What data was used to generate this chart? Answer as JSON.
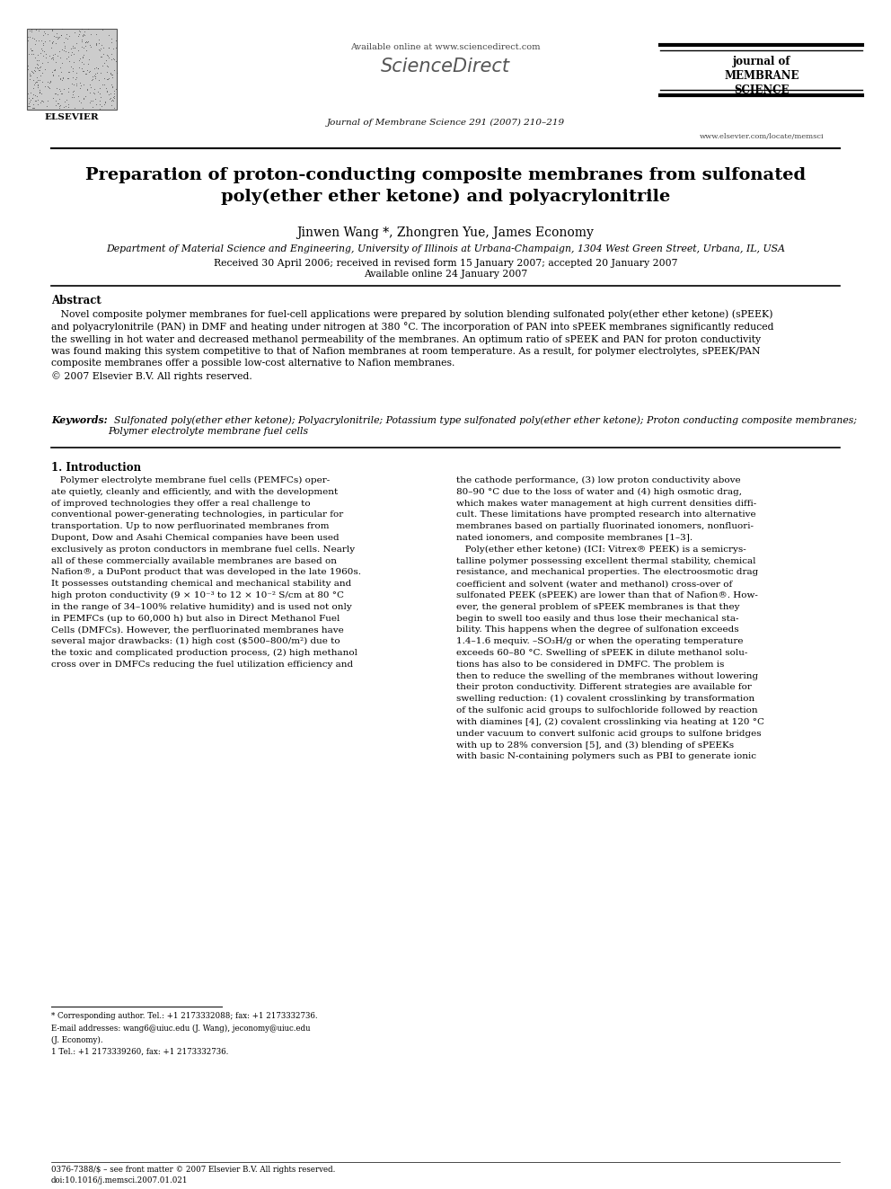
{
  "bg_color": "#ffffff",
  "page_width": 9.92,
  "page_height": 13.23,
  "header": {
    "available_online": "Available online at www.sciencedirect.com",
    "sciencedirect": "ScienceDirect",
    "journal_name": "journal of\nMEMBRANE\nSCIENCE",
    "journal_ref": "Journal of Membrane Science 291 (2007) 210–219",
    "website": "www.elsevier.com/locate/memsci",
    "elsevier": "ELSEVIER"
  },
  "title_line1": "Preparation of proton-conducting composite membranes from sulfonated",
  "title_line2": "poly(ether ether ketone) and polyacrylonitrile",
  "authors": "Jinwen Wang *, Zhongren Yue, James Economy",
  "affiliation": "Department of Material Science and Engineering, University of Illinois at Urbana-Champaign, 1304 West Green Street, Urbana, IL, USA",
  "received": "Received 30 April 2006; received in revised form 15 January 2007; accepted 20 January 2007",
  "available": "Available online 24 January 2007",
  "abstract_title": "Abstract",
  "abstract_text": "   Novel composite polymer membranes for fuel-cell applications were prepared by solution blending sulfonated poly(ether ether ketone) (sPEEK)\nand polyacrylonitrile (PAN) in DMF and heating under nitrogen at 380 °C. The incorporation of PAN into sPEEK membranes significantly reduced\nthe swelling in hot water and decreased methanol permeability of the membranes. An optimum ratio of sPEEK and PAN for proton conductivity\nwas found making this system competitive to that of Nafion membranes at room temperature. As a result, for polymer electrolytes, sPEEK/PAN\ncomposite membranes offer a possible low-cost alternative to Nafion membranes.\n© 2007 Elsevier B.V. All rights reserved.",
  "keywords_label": "Keywords:",
  "keywords_text": "  Sulfonated poly(ether ether ketone); Polyacrylonitrile; Potassium type sulfonated poly(ether ether ketone); Proton conducting composite membranes;\nPolymer electrolyte membrane fuel cells",
  "section1_title": "1. Introduction",
  "col1_lines": [
    "   Polymer electrolyte membrane fuel cells (PEMFCs) oper-",
    "ate quietly, cleanly and efficiently, and with the development",
    "of improved technologies they offer a real challenge to",
    "conventional power-generating technologies, in particular for",
    "transportation. Up to now perfluorinated membranes from",
    "Dupont, Dow and Asahi Chemical companies have been used",
    "exclusively as proton conductors in membrane fuel cells. Nearly",
    "all of these commercially available membranes are based on",
    "Nafion®, a DuPont product that was developed in the late 1960s.",
    "It possesses outstanding chemical and mechanical stability and",
    "high proton conductivity (9 × 10⁻³ to 12 × 10⁻² S/cm at 80 °C",
    "in the range of 34–100% relative humidity) and is used not only",
    "in PEMFCs (up to 60,000 h) but also in Direct Methanol Fuel",
    "Cells (DMFCs). However, the perfluorinated membranes have",
    "several major drawbacks: (1) high cost ($500–800/m²) due to",
    "the toxic and complicated production process, (2) high methanol",
    "cross over in DMFCs reducing the fuel utilization efficiency and"
  ],
  "col2_lines": [
    "the cathode performance, (3) low proton conductivity above",
    "80–90 °C due to the loss of water and (4) high osmotic drag,",
    "which makes water management at high current densities diffi-",
    "cult. These limitations have prompted research into alternative",
    "membranes based on partially fluorinated ionomers, nonfluori-",
    "nated ionomers, and composite membranes [1–3].",
    "   Poly(ether ether ketone) (ICI: Vitrex® PEEK) is a semicrys-",
    "talline polymer possessing excellent thermal stability, chemical",
    "resistance, and mechanical properties. The electroosmotic drag",
    "coefficient and solvent (water and methanol) cross-over of",
    "sulfonated PEEK (sPEEK) are lower than that of Nafion®. How-",
    "ever, the general problem of sPEEK membranes is that they",
    "begin to swell too easily and thus lose their mechanical sta-",
    "bility. This happens when the degree of sulfonation exceeds",
    "1.4–1.6 mequiv. –SO₃H/g or when the operating temperature",
    "exceeds 60–80 °C. Swelling of sPEEK in dilute methanol solu-",
    "tions has also to be considered in DMFC. The problem is",
    "then to reduce the swelling of the membranes without lowering",
    "their proton conductivity. Different strategies are available for",
    "swelling reduction: (1) covalent crosslinking by transformation",
    "of the sulfonic acid groups to sulfochloride followed by reaction",
    "with diamines [4], (2) covalent crosslinking via heating at 120 °C",
    "under vacuum to convert sulfonic acid groups to sulfone bridges",
    "with up to 28% conversion [5], and (3) blending of sPEEKs",
    "with basic N-containing polymers such as PBI to generate ionic"
  ],
  "footnote_star": "* Corresponding author. Tel.: +1 2173332088; fax: +1 2173332736.",
  "footnote_email_1": "E-mail addresses: wang6@uiuc.edu (J. Wang), jeconomy@uiuc.edu",
  "footnote_email_2": "(J. Economy).",
  "footnote_1": "1 Tel.: +1 2173339260, fax: +1 2173332736.",
  "bottom_line1": "0376-7388/$ – see front matter © 2007 Elsevier B.V. All rights reserved.",
  "bottom_line2": "doi:10.1016/j.memsci.2007.01.021"
}
